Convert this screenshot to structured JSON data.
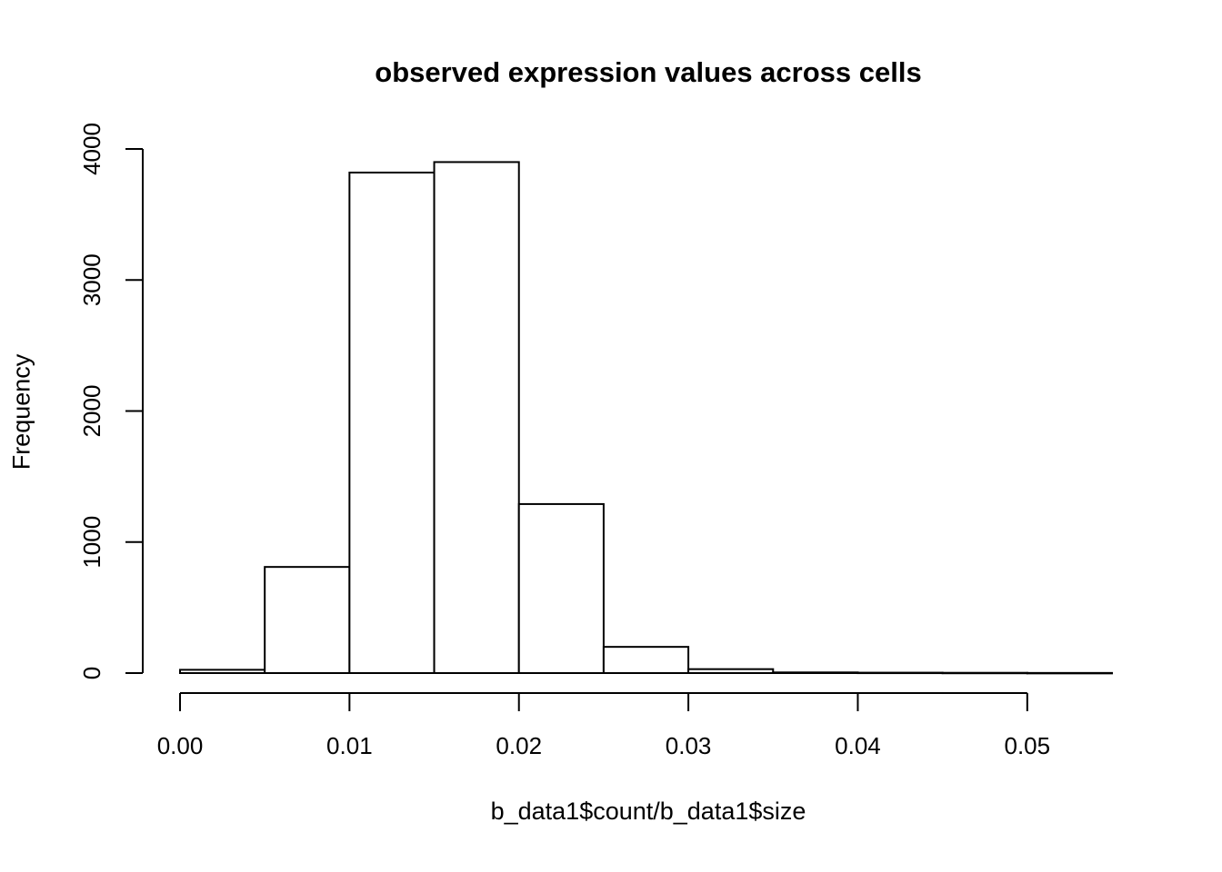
{
  "page": {
    "background": "#ffffff"
  },
  "chart_data": {
    "type": "bar",
    "subtype": "histogram",
    "title": "observed expression values across cells",
    "xlabel": "b_data1$count/b_data1$size",
    "ylabel": "Frequency",
    "bin_edges": [
      0,
      0.005,
      0.01,
      0.015,
      0.02,
      0.025,
      0.03,
      0.035,
      0.04,
      0.045,
      0.05,
      0.055
    ],
    "counts": [
      25,
      810,
      3820,
      3900,
      1290,
      200,
      30,
      5,
      3,
      2,
      1
    ],
    "x_tick_values": [
      0,
      0.01,
      0.02,
      0.03,
      0.04,
      0.05
    ],
    "x_tick_labels": [
      "0.00",
      "0.01",
      "0.02",
      "0.03",
      "0.04",
      "0.05"
    ],
    "y_tick_values": [
      0,
      1000,
      2000,
      3000,
      4000
    ],
    "y_tick_labels": [
      "0",
      "1000",
      "2000",
      "3000",
      "4000"
    ],
    "xlim": [
      0,
      0.055
    ],
    "ylim": [
      0,
      4000
    ],
    "bar_fill": "#ffffff",
    "line_color": "#000000",
    "grid": false,
    "legend": false
  }
}
